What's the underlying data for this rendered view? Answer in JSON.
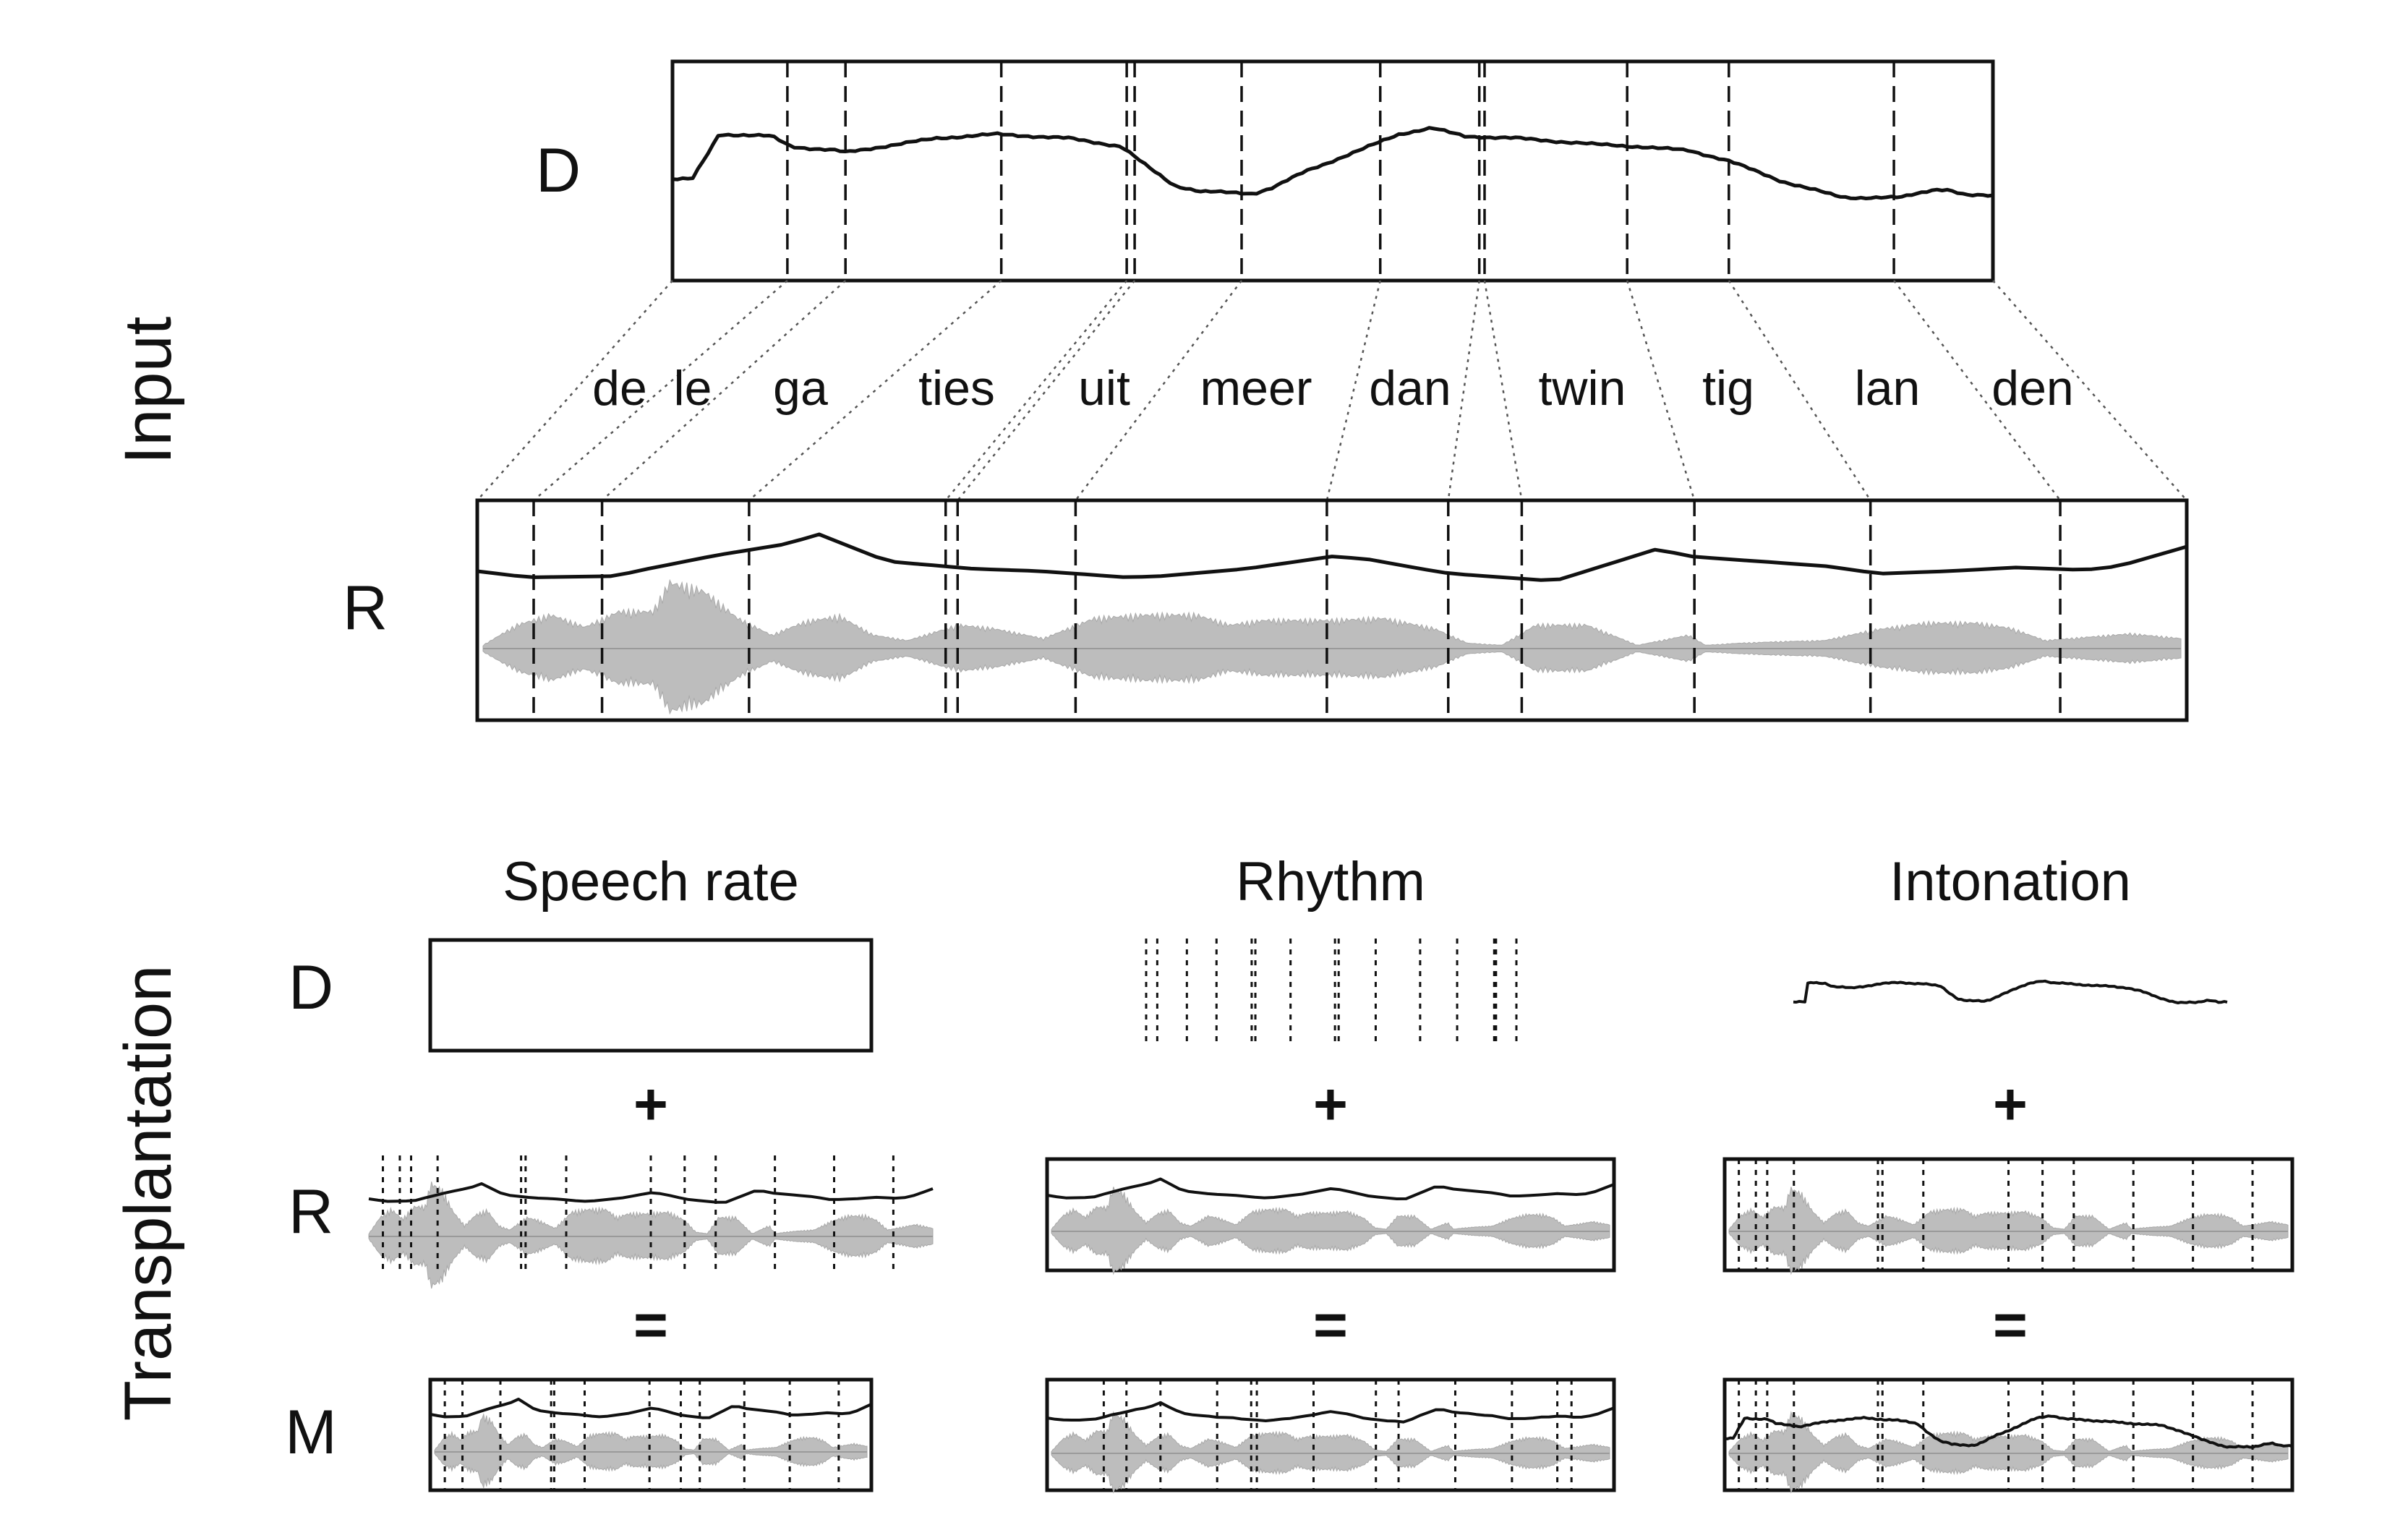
{
  "labels": {
    "input_section": "Input",
    "transplantation_section": "Transplantation",
    "donor": "D",
    "recipient": "R",
    "manipulated": "M",
    "plus": "+",
    "equals": "="
  },
  "syllables": [
    "de",
    "le",
    "ga",
    "ties",
    "uit",
    "meer",
    "dan",
    "twin",
    "tig",
    "lan",
    "den"
  ],
  "columns": [
    {
      "title": "Speech rate"
    },
    {
      "title": "Rhythm"
    },
    {
      "title": "Intonation"
    }
  ]
}
